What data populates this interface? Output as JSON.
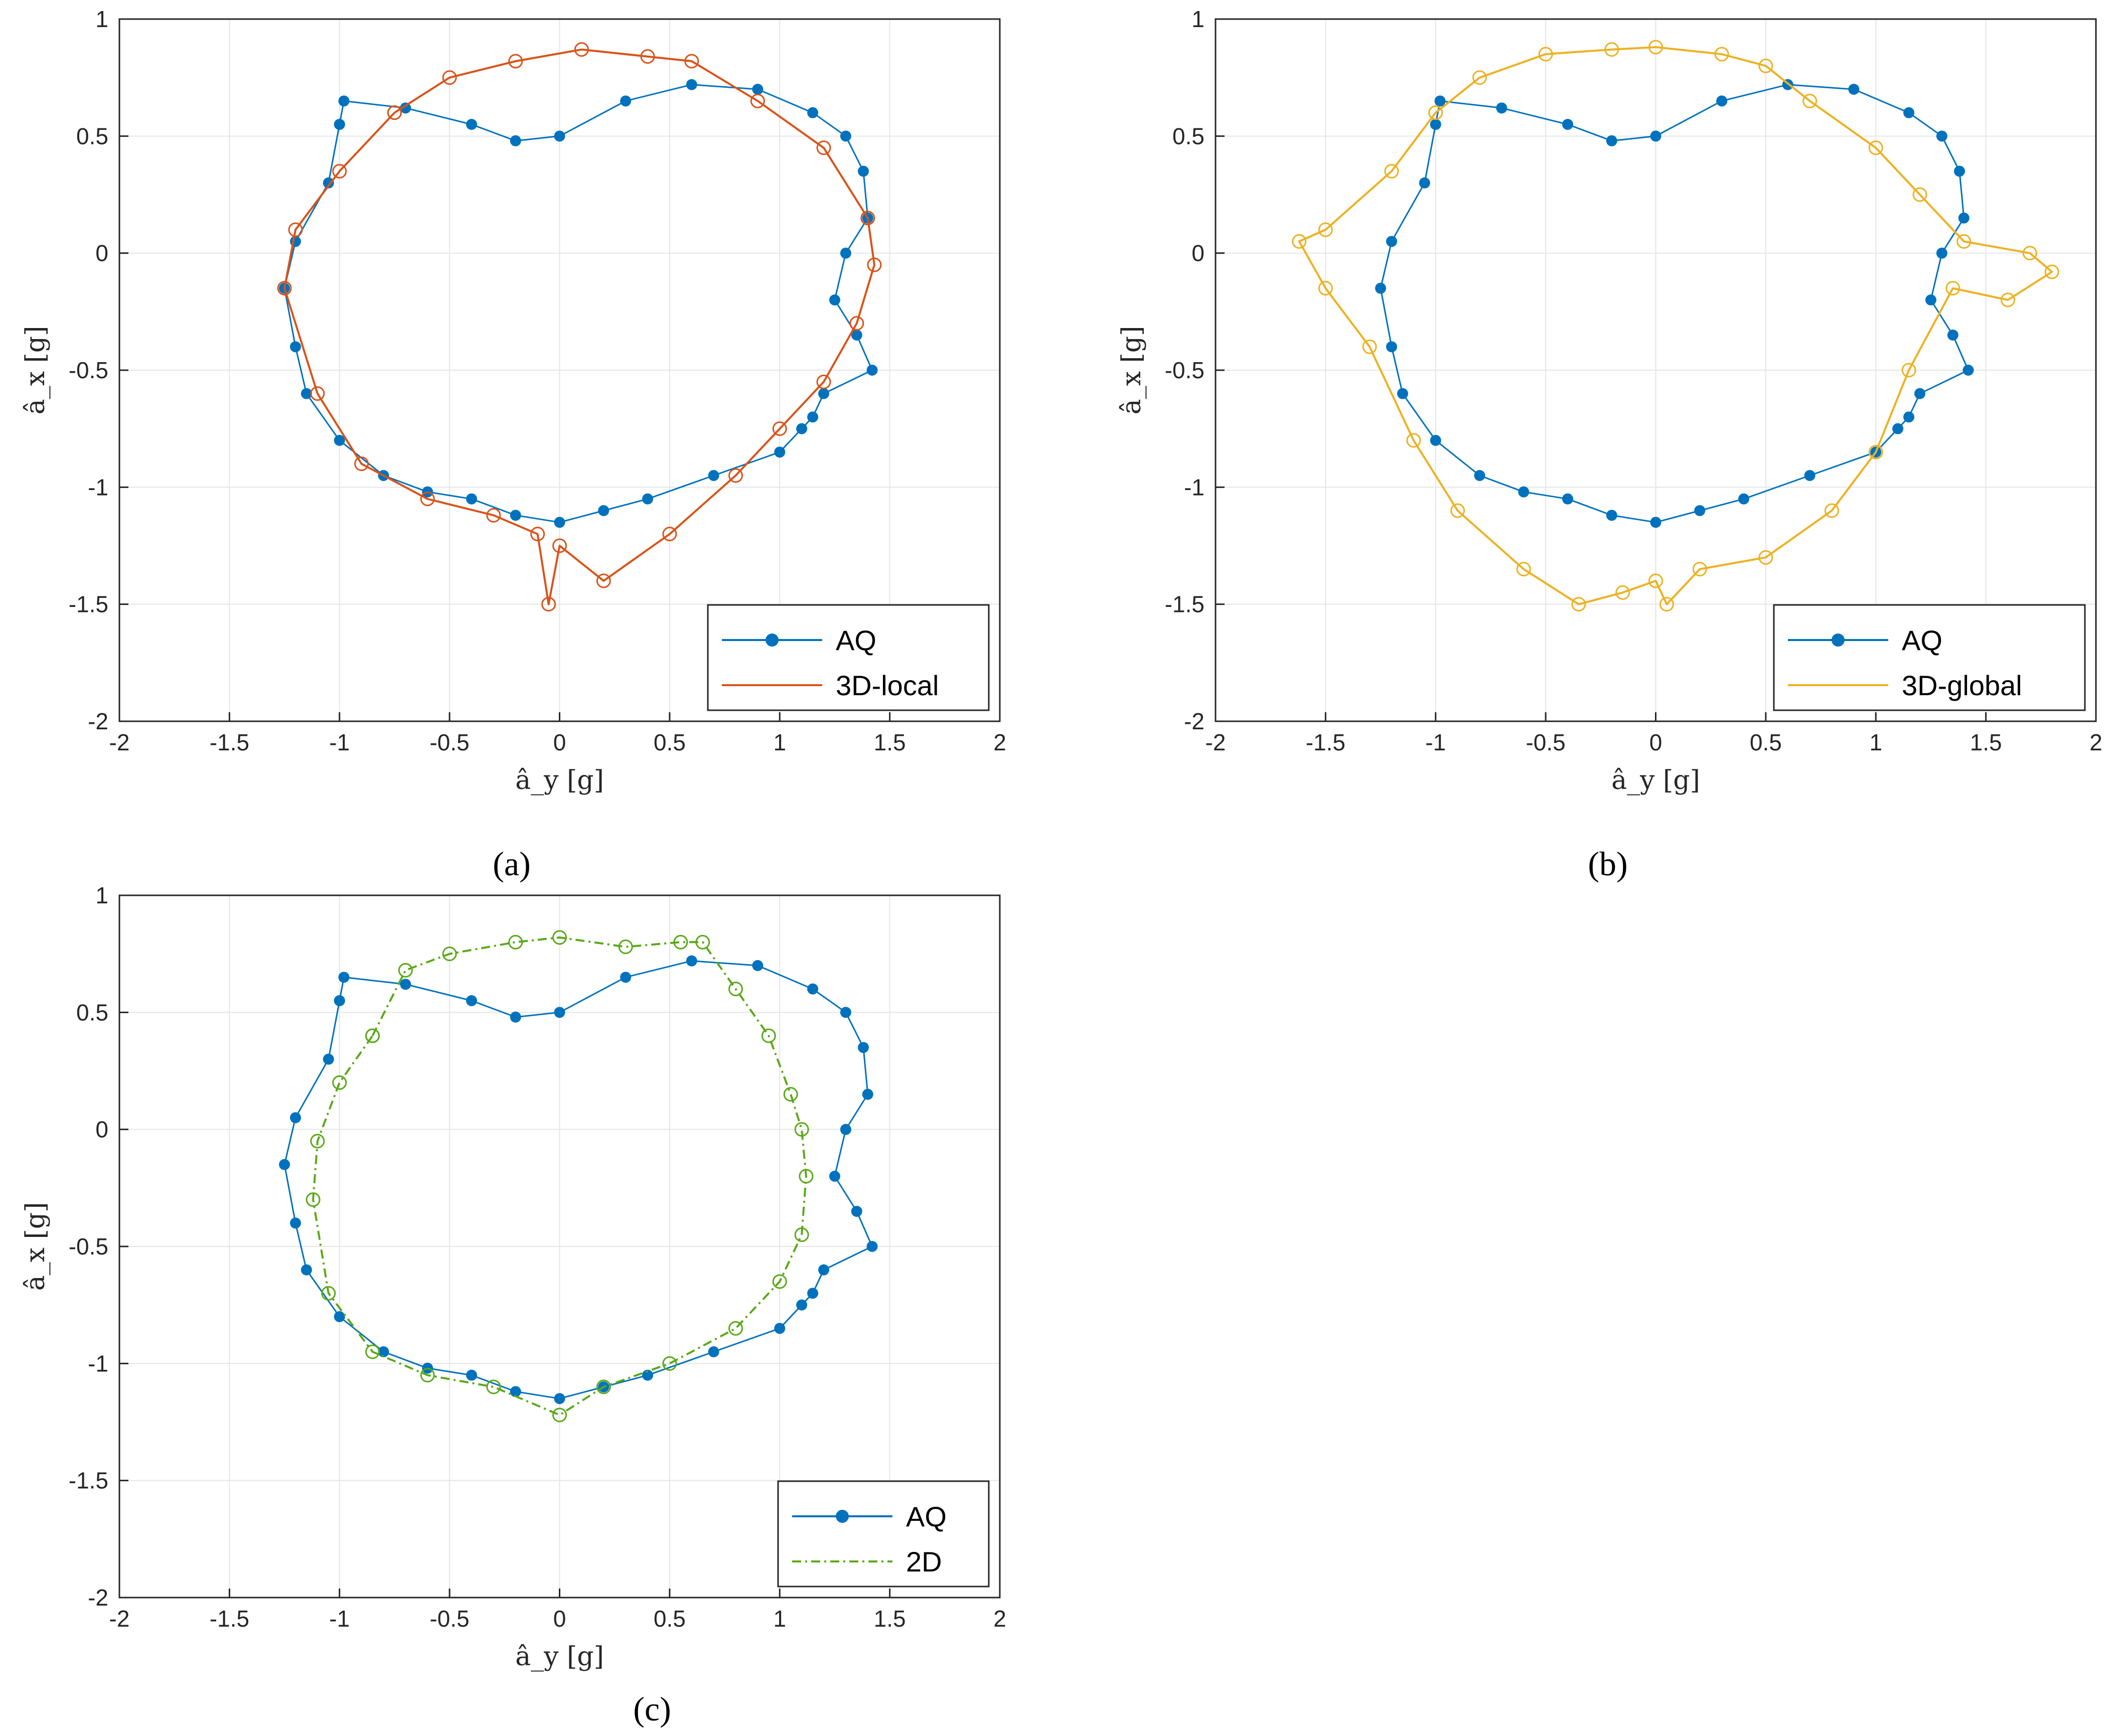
{
  "figure": {
    "captions": [
      "(a)",
      "(b)",
      "(c)"
    ]
  },
  "colors": {
    "aq": "#0072BD",
    "local": "#D95319",
    "global": "#EDB120",
    "twod": "#5AA818",
    "grid": "#e5e5e5",
    "axis": "#262626"
  },
  "chart_data": [
    {
      "type": "line",
      "panel": "(a)",
      "title": "",
      "xlabel": "â_y [g]",
      "ylabel": "â_x [g]",
      "xlim": [
        -2,
        2
      ],
      "ylim": [
        -2,
        1
      ],
      "xticks": [
        -2,
        -1.5,
        -1,
        -0.5,
        0,
        0.5,
        1,
        1.5,
        2
      ],
      "yticks": [
        -2,
        -1.5,
        -1,
        -0.5,
        0,
        0.5,
        1
      ],
      "grid": true,
      "legend_position": "bottom-right",
      "series": [
        {
          "name": "AQ",
          "marker": "filled-circle",
          "line_style": "solid",
          "x": [
            -1.0,
            -0.98,
            -0.7,
            -0.4,
            -0.2,
            0.0,
            0.3,
            0.6,
            0.9,
            1.15,
            1.3,
            1.38,
            1.4,
            1.3,
            1.25,
            1.35,
            1.42,
            1.2,
            1.15,
            1.1,
            1.0,
            0.7,
            0.4,
            0.2,
            0.0,
            -0.2,
            -0.4,
            -0.6,
            -0.8,
            -1.0,
            -1.15,
            -1.2,
            -1.25,
            -1.2,
            -1.05,
            -1.0
          ],
          "y": [
            0.55,
            0.65,
            0.62,
            0.55,
            0.48,
            0.5,
            0.65,
            0.72,
            0.7,
            0.6,
            0.5,
            0.35,
            0.15,
            0.0,
            -0.2,
            -0.35,
            -0.5,
            -0.6,
            -0.7,
            -0.75,
            -0.85,
            -0.95,
            -1.05,
            -1.1,
            -1.15,
            -1.12,
            -1.05,
            -1.02,
            -0.95,
            -0.8,
            -0.6,
            -0.4,
            -0.15,
            0.05,
            0.3,
            0.55
          ]
        },
        {
          "name": "3D-local",
          "marker": "open-circle",
          "line_style": "solid",
          "x": [
            -0.75,
            -0.5,
            -0.2,
            0.1,
            0.4,
            0.6,
            0.9,
            1.2,
            1.4,
            1.43,
            1.35,
            1.2,
            1.0,
            0.8,
            0.5,
            0.2,
            0.0,
            -0.05,
            -0.1,
            -0.3,
            -0.6,
            -0.9,
            -1.1,
            -1.25,
            -1.2,
            -1.0,
            -0.75
          ],
          "y": [
            0.6,
            0.75,
            0.82,
            0.87,
            0.84,
            0.82,
            0.65,
            0.45,
            0.15,
            -0.05,
            -0.3,
            -0.55,
            -0.75,
            -0.95,
            -1.2,
            -1.4,
            -1.25,
            -1.5,
            -1.2,
            -1.12,
            -1.05,
            -0.9,
            -0.6,
            -0.15,
            0.1,
            0.35,
            0.6
          ]
        }
      ]
    },
    {
      "type": "line",
      "panel": "(b)",
      "title": "",
      "xlabel": "â_y [g]",
      "ylabel": "â_x [g]",
      "xlim": [
        -2,
        2
      ],
      "ylim": [
        -2,
        1
      ],
      "xticks": [
        -2,
        -1.5,
        -1,
        -0.5,
        0,
        0.5,
        1,
        1.5,
        2
      ],
      "yticks": [
        -2,
        -1.5,
        -1,
        -0.5,
        0,
        0.5,
        1
      ],
      "grid": true,
      "legend_position": "bottom-right",
      "series": [
        {
          "name": "AQ",
          "marker": "filled-circle",
          "line_style": "solid",
          "x": [
            -1.0,
            -0.98,
            -0.7,
            -0.4,
            -0.2,
            0.0,
            0.3,
            0.6,
            0.9,
            1.15,
            1.3,
            1.38,
            1.4,
            1.3,
            1.25,
            1.35,
            1.42,
            1.2,
            1.15,
            1.1,
            1.0,
            0.7,
            0.4,
            0.2,
            0.0,
            -0.2,
            -0.4,
            -0.6,
            -0.8,
            -1.0,
            -1.15,
            -1.2,
            -1.25,
            -1.2,
            -1.05,
            -1.0
          ],
          "y": [
            0.55,
            0.65,
            0.62,
            0.55,
            0.48,
            0.5,
            0.65,
            0.72,
            0.7,
            0.6,
            0.5,
            0.35,
            0.15,
            0.0,
            -0.2,
            -0.35,
            -0.5,
            -0.6,
            -0.7,
            -0.75,
            -0.85,
            -0.95,
            -1.05,
            -1.1,
            -1.15,
            -1.12,
            -1.05,
            -1.02,
            -0.95,
            -0.8,
            -0.6,
            -0.4,
            -0.15,
            0.05,
            0.3,
            0.55
          ]
        },
        {
          "name": "3D-global",
          "marker": "open-circle",
          "line_style": "solid",
          "x": [
            -1.0,
            -0.8,
            -0.5,
            -0.2,
            0.0,
            0.3,
            0.5,
            0.7,
            1.0,
            1.2,
            1.4,
            1.7,
            1.8,
            1.6,
            1.35,
            1.15,
            1.0,
            0.8,
            0.5,
            0.2,
            0.05,
            0.0,
            -0.15,
            -0.35,
            -0.6,
            -0.9,
            -1.1,
            -1.3,
            -1.5,
            -1.62,
            -1.5,
            -1.2,
            -1.0
          ],
          "y": [
            0.6,
            0.75,
            0.85,
            0.87,
            0.88,
            0.85,
            0.8,
            0.65,
            0.45,
            0.25,
            0.05,
            0.0,
            -0.08,
            -0.2,
            -0.15,
            -0.5,
            -0.85,
            -1.1,
            -1.3,
            -1.35,
            -1.5,
            -1.4,
            -1.45,
            -1.5,
            -1.35,
            -1.1,
            -0.8,
            -0.4,
            -0.15,
            0.05,
            0.1,
            0.35,
            0.6
          ]
        }
      ]
    },
    {
      "type": "line",
      "panel": "(c)",
      "title": "",
      "xlabel": "â_y [g]",
      "ylabel": "â_x [g]",
      "xlim": [
        -2,
        2
      ],
      "ylim": [
        -2,
        1
      ],
      "xticks": [
        -2,
        -1.5,
        -1,
        -0.5,
        0,
        0.5,
        1,
        1.5,
        2
      ],
      "yticks": [
        -2,
        -1.5,
        -1,
        -0.5,
        0,
        0.5,
        1
      ],
      "grid": true,
      "legend_position": "bottom-right",
      "series": [
        {
          "name": "AQ",
          "marker": "filled-circle",
          "line_style": "solid",
          "x": [
            -1.0,
            -0.98,
            -0.7,
            -0.4,
            -0.2,
            0.0,
            0.3,
            0.6,
            0.9,
            1.15,
            1.3,
            1.38,
            1.4,
            1.3,
            1.25,
            1.35,
            1.42,
            1.2,
            1.15,
            1.1,
            1.0,
            0.7,
            0.4,
            0.2,
            0.0,
            -0.2,
            -0.4,
            -0.6,
            -0.8,
            -1.0,
            -1.15,
            -1.2,
            -1.25,
            -1.2,
            -1.05,
            -1.0
          ],
          "y": [
            0.55,
            0.65,
            0.62,
            0.55,
            0.48,
            0.5,
            0.65,
            0.72,
            0.7,
            0.6,
            0.5,
            0.35,
            0.15,
            0.0,
            -0.2,
            -0.35,
            -0.5,
            -0.6,
            -0.7,
            -0.75,
            -0.85,
            -0.95,
            -1.05,
            -1.1,
            -1.15,
            -1.12,
            -1.05,
            -1.02,
            -0.95,
            -0.8,
            -0.6,
            -0.4,
            -0.15,
            0.05,
            0.3,
            0.55
          ]
        },
        {
          "name": "2D",
          "marker": "open-circle",
          "line_style": "dash-dot",
          "x": [
            -0.85,
            -0.7,
            -0.5,
            -0.2,
            0.0,
            0.3,
            0.55,
            0.65,
            0.8,
            0.95,
            1.05,
            1.1,
            1.12,
            1.1,
            1.0,
            0.8,
            0.5,
            0.2,
            0.0,
            -0.3,
            -0.6,
            -0.85,
            -1.05,
            -1.12,
            -1.1,
            -1.0,
            -0.85
          ],
          "y": [
            0.4,
            0.68,
            0.75,
            0.8,
            0.82,
            0.78,
            0.8,
            0.8,
            0.6,
            0.4,
            0.15,
            0.0,
            -0.2,
            -0.45,
            -0.65,
            -0.85,
            -1.0,
            -1.1,
            -1.22,
            -1.1,
            -1.05,
            -0.95,
            -0.7,
            -0.3,
            -0.05,
            0.2,
            0.4
          ]
        }
      ]
    }
  ]
}
